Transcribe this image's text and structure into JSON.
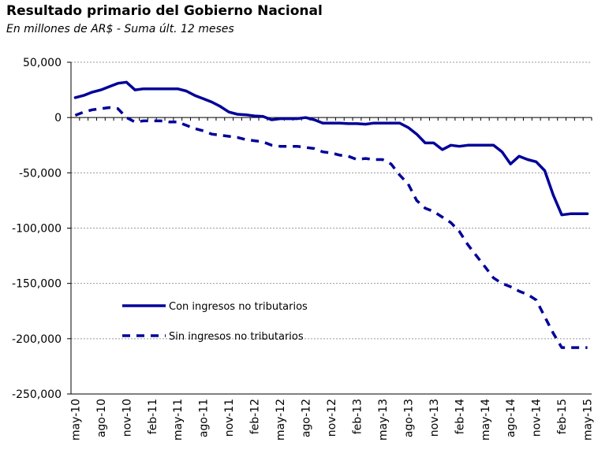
{
  "chart_data": {
    "type": "line",
    "title": "Resultado primario del Gobierno Nacional",
    "subtitle": "En millones de AR$ - Suma últ. 12 meses",
    "xlabel": "",
    "ylabel": "",
    "ylim": [
      -250000,
      50000
    ],
    "yticks": [
      50000,
      0,
      -50000,
      -100000,
      -150000,
      -200000,
      -250000
    ],
    "ytick_labels": [
      "50,000",
      "0",
      "-50,000",
      "-100,000",
      "-150,000",
      "-200,000",
      "-250,000"
    ],
    "x": [
      "may-10",
      "jun-10",
      "jul-10",
      "ago-10",
      "sep-10",
      "oct-10",
      "nov-10",
      "dic-10",
      "ene-11",
      "feb-11",
      "mar-11",
      "abr-11",
      "may-11",
      "jun-11",
      "jul-11",
      "ago-11",
      "sep-11",
      "oct-11",
      "nov-11",
      "dic-11",
      "ene-12",
      "feb-12",
      "mar-12",
      "abr-12",
      "may-12",
      "jun-12",
      "jul-12",
      "ago-12",
      "sep-12",
      "oct-12",
      "nov-12",
      "dic-12",
      "ene-13",
      "feb-13",
      "mar-13",
      "abr-13",
      "may-13",
      "jun-13",
      "jul-13",
      "ago-13",
      "sep-13",
      "oct-13",
      "nov-13",
      "dic-13",
      "ene-14",
      "feb-14",
      "mar-14",
      "abr-14",
      "may-14",
      "jun-14",
      "jul-14",
      "ago-14",
      "sep-14",
      "oct-14",
      "nov-14",
      "dic-14",
      "ene-15",
      "feb-15",
      "mar-15",
      "abr-15",
      "may-15"
    ],
    "xtick_labels": [
      "may-10",
      "ago-10",
      "nov-10",
      "feb-11",
      "may-11",
      "ago-11",
      "nov-11",
      "feb-12",
      "may-12",
      "ago-12",
      "nov-12",
      "feb-13",
      "may-13",
      "ago-13",
      "nov-13",
      "feb-14",
      "may-14",
      "ago-14",
      "nov-14",
      "feb-15",
      "may-15"
    ],
    "series": [
      {
        "name": "Con ingresos no tributarios",
        "style": "solid",
        "color": "#000099",
        "values": [
          18000,
          20000,
          23000,
          25000,
          28000,
          31000,
          32000,
          25000,
          26000,
          26000,
          26000,
          26000,
          26000,
          24000,
          20000,
          17000,
          14000,
          10000,
          5000,
          3000,
          2500,
          1500,
          1000,
          -2000,
          -1000,
          -1000,
          -1000,
          0,
          -2000,
          -5000,
          -5000,
          -5000,
          -5500,
          -5500,
          -6000,
          -5000,
          -5000,
          -5000,
          -5000,
          -9000,
          -15000,
          -23000,
          -23000,
          -29000,
          -25000,
          -26000,
          -25000,
          -25000,
          -25000,
          -25000,
          -31000,
          -42000,
          -35000,
          -38000,
          -40000,
          -48000,
          -70000,
          -88000,
          -87000,
          -87000,
          -87000
        ]
      },
      {
        "name": "Sin ingresos no tributarios",
        "style": "dashed",
        "color": "#000099",
        "values": [
          2000,
          5000,
          7000,
          8000,
          9000,
          8000,
          0,
          -4000,
          -3000,
          -3000,
          -3000,
          -4000,
          -4000,
          -7000,
          -10000,
          -12000,
          -15000,
          -16000,
          -17000,
          -18000,
          -20000,
          -21000,
          -22000,
          -25000,
          -26000,
          -26000,
          -26000,
          -27000,
          -28000,
          -31000,
          -32000,
          -34000,
          -35000,
          -38000,
          -37000,
          -38000,
          -38000,
          -42000,
          -52000,
          -60000,
          -75000,
          -82000,
          -85000,
          -90000,
          -95000,
          -103000,
          -115000,
          -125000,
          -135000,
          -145000,
          -150000,
          -153000,
          -157000,
          -160000,
          -165000,
          -180000,
          -195000,
          -208000,
          -208000,
          -208000,
          -208000
        ]
      }
    ],
    "legend_placement": "lower-left",
    "grid": "horizontal dashed"
  }
}
